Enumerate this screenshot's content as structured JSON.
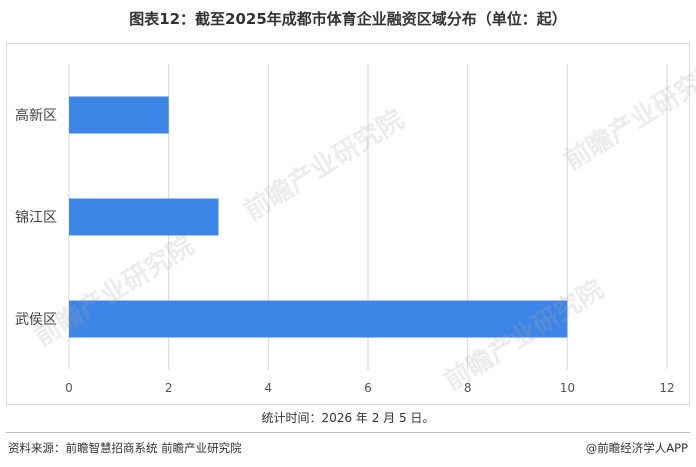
{
  "title": "图表12：截至2025年成都市体育企业融资区域分布（单位：起）",
  "footnote": "统计时间：2026 年 2 月 5 日。",
  "source": "资料来源：前瞻智慧招商系统  前瞻产业研究院",
  "brand": "@前瞻经济学人APP",
  "watermark": "前瞻产业研究院",
  "colors": {
    "bar": "#3d85e6",
    "grid": "#d9d9d9"
  },
  "chart_data": {
    "type": "bar",
    "orientation": "horizontal",
    "categories": [
      "高新区",
      "锦江区",
      "武侯区"
    ],
    "values": [
      2,
      3,
      10
    ],
    "xlim": [
      0,
      12
    ],
    "xticks": [
      0,
      2,
      4,
      6,
      8,
      10,
      12
    ],
    "grid": "vertical",
    "title": "图表12：截至2025年成都市体育企业融资区域分布（单位：起）",
    "xlabel": "",
    "ylabel": ""
  }
}
